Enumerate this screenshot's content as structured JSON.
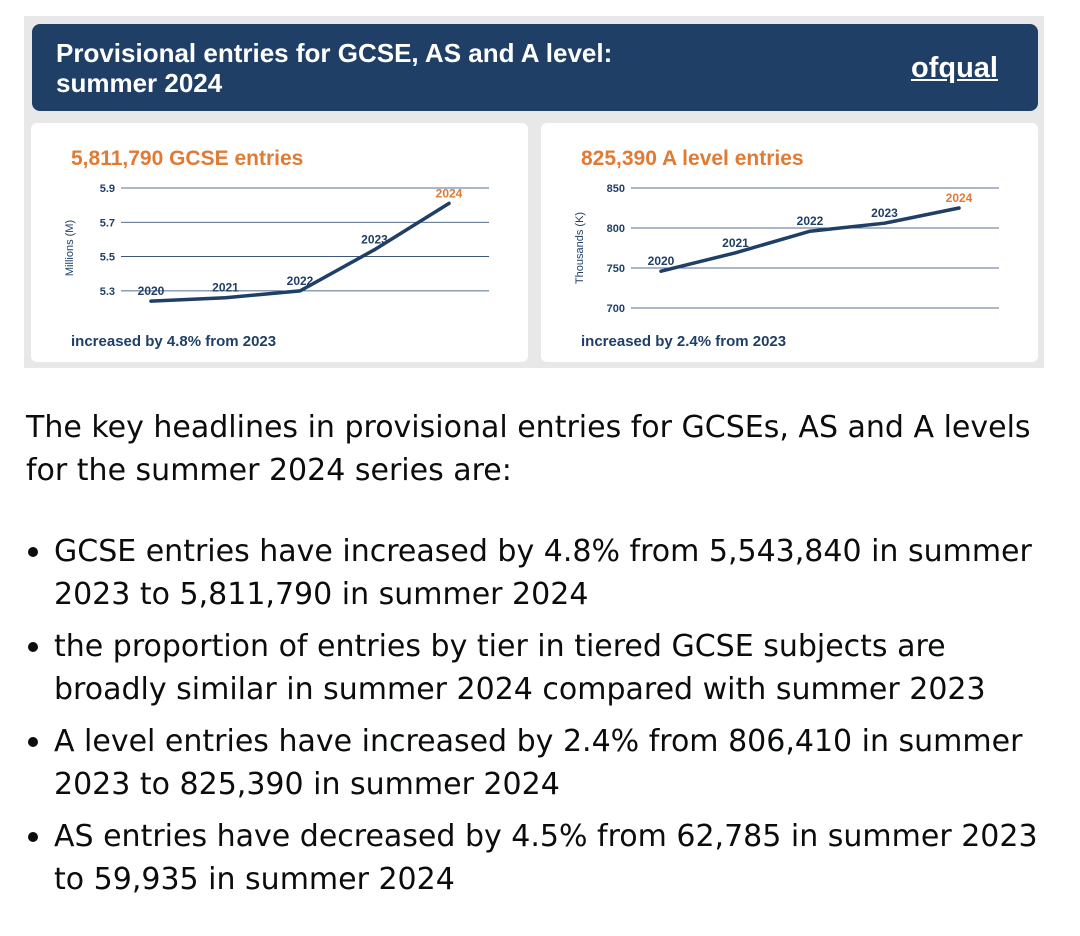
{
  "infographic": {
    "title": "Provisional entries for GCSE, AS and A level: summer 2024",
    "logo": "ofqual",
    "colors": {
      "banner": "#1f3f66",
      "accent": "#e07a35",
      "line": "#1f3f66"
    }
  },
  "chart_data": [
    {
      "type": "line",
      "title": "5,811,790 GCSE entries",
      "ylabel": "Millions (M)",
      "xlabel": "",
      "x": [
        "2020",
        "2021",
        "2022",
        "2023",
        "2024"
      ],
      "y": [
        5.24,
        5.26,
        5.3,
        5.54,
        5.81
      ],
      "y_ticks": [
        "5.3",
        "5.5",
        "5.7",
        "5.9"
      ],
      "ylim": [
        5.2,
        5.9
      ],
      "highlight": "2024",
      "footer": "increased by 4.8% from 2023",
      "grid": true
    },
    {
      "type": "line",
      "title": "825,390 A level entries",
      "ylabel": "Thousands (K)",
      "xlabel": "",
      "x": [
        "2020",
        "2021",
        "2022",
        "2023",
        "2024"
      ],
      "y": [
        746,
        769,
        796,
        806,
        825
      ],
      "y_ticks": [
        "700",
        "750",
        "800",
        "850"
      ],
      "ylim": [
        700,
        850
      ],
      "highlight": "2024",
      "footer": "increased by 2.4% from 2023",
      "grid": true
    }
  ],
  "article": {
    "intro": "The key headlines in provisional entries for GCSEs, AS and A levels for the summer 2024 series are:",
    "bullets": [
      "GCSE entries have increased by 4.8% from 5,543,840 in summer 2023 to 5,811,790 in summer 2024",
      "the proportion of entries by tier in tiered GCSE subjects are broadly similar in summer 2024 compared with summer 2023",
      "A level entries have increased by 2.4% from 806,410 in summer 2023 to 825,390 in summer 2024",
      "AS entries have decreased by 4.5% from 62,785 in summer 2023 to 59,935 in summer 2024"
    ]
  }
}
